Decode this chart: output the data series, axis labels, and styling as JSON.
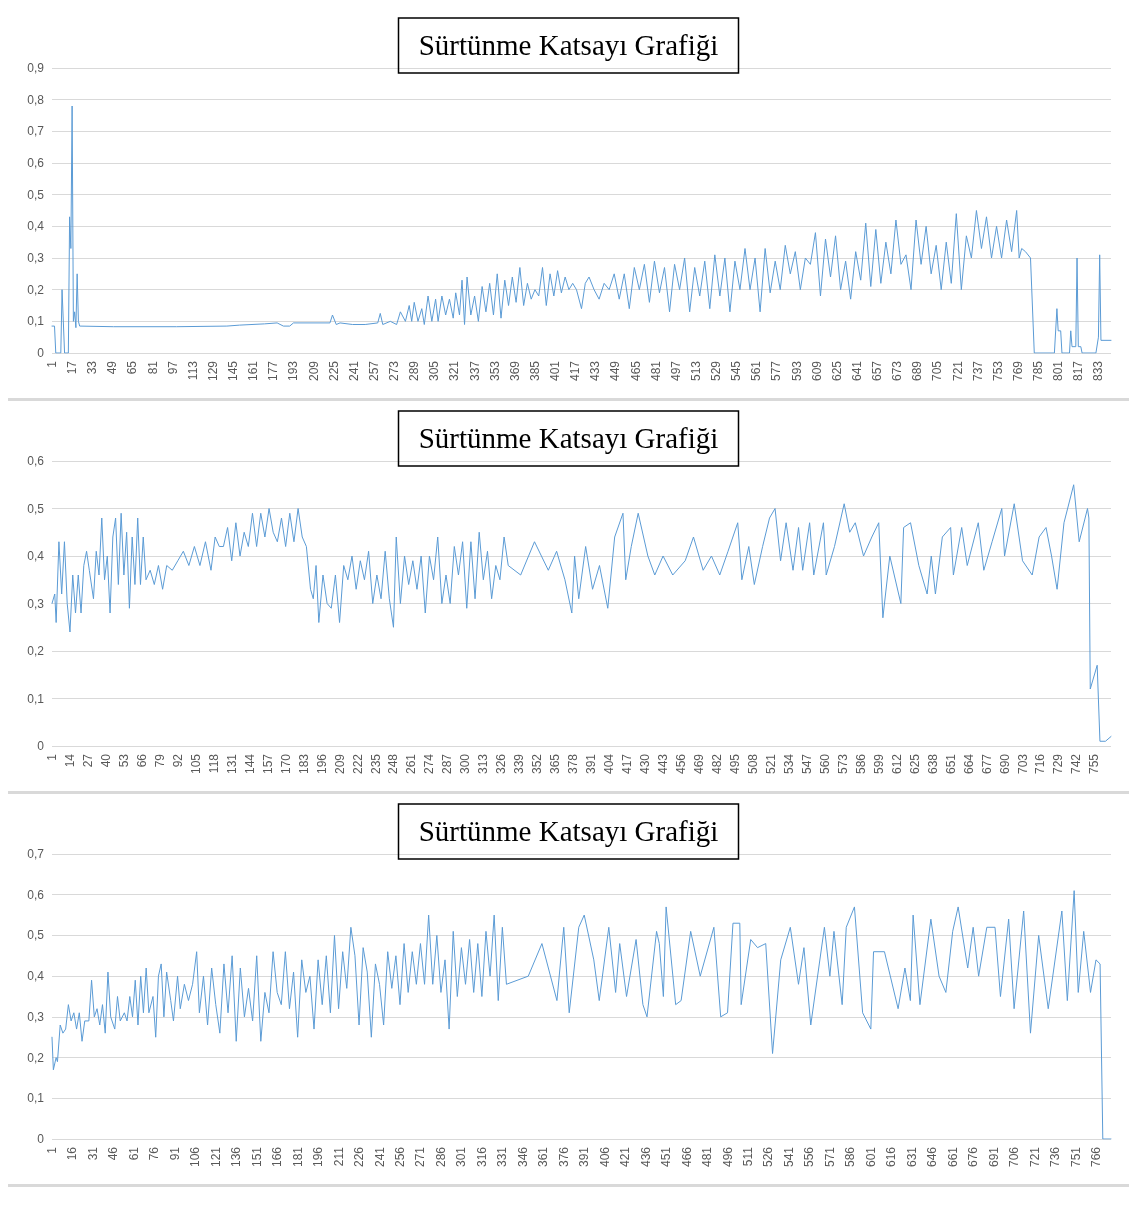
{
  "chart_data": [
    {
      "type": "line",
      "title": "Sürtünme Katsayı Grafiği",
      "grid": "y",
      "line_style": "solid",
      "marker": "none",
      "xlim": [
        1,
        843
      ],
      "ylim": [
        0,
        0.9
      ],
      "xticks": [
        1,
        17,
        33,
        49,
        65,
        81,
        97,
        113,
        129,
        145,
        161,
        177,
        193,
        209,
        225,
        241,
        257,
        273,
        289,
        305,
        321,
        337,
        353,
        369,
        385,
        401,
        417,
        433,
        449,
        465,
        481,
        497,
        513,
        529,
        545,
        561,
        577,
        593,
        609,
        625,
        641,
        657,
        673,
        689,
        705,
        721,
        737,
        753,
        769,
        785,
        801,
        817,
        833
      ],
      "yticks": [
        {
          "value": 0,
          "label": "0"
        },
        {
          "value": 0.1,
          "label": "0,1"
        },
        {
          "value": 0.2,
          "label": "0,2"
        },
        {
          "value": 0.3,
          "label": "0,3"
        },
        {
          "value": 0.4,
          "label": "0,4"
        },
        {
          "value": 0.5,
          "label": "0,5"
        },
        {
          "value": 0.6,
          "label": "0,6"
        },
        {
          "value": 0.7,
          "label": "0,7"
        },
        {
          "value": 0.8,
          "label": "0,8"
        },
        {
          "value": 0.9,
          "label": "0,9"
        }
      ],
      "series": [
        {
          "color": "#5b9bd5",
          "x": [
            1,
            3,
            4,
            8,
            9,
            11,
            14,
            15,
            16,
            17,
            18,
            19,
            20,
            21,
            22,
            23,
            50,
            100,
            140,
            150,
            170,
            180,
            185,
            190,
            193,
            222,
            224,
            227,
            230,
            240,
            250,
            260,
            262,
            264,
            270,
            275,
            278,
            282,
            285,
            287,
            289,
            292,
            295,
            297,
            300,
            303,
            306,
            308,
            311,
            314,
            317,
            320,
            322,
            325,
            327,
            329,
            331,
            334,
            337,
            340,
            343,
            346,
            349,
            352,
            355,
            358,
            361,
            364,
            367,
            370,
            373,
            376,
            379,
            382,
            385,
            388,
            391,
            394,
            397,
            400,
            403,
            406,
            409,
            412,
            415,
            418,
            422,
            425,
            428,
            432,
            436,
            440,
            444,
            448,
            452,
            456,
            460,
            464,
            468,
            472,
            476,
            480,
            484,
            488,
            492,
            496,
            500,
            504,
            508,
            512,
            516,
            520,
            524,
            528,
            532,
            536,
            540,
            544,
            548,
            552,
            556,
            560,
            564,
            568,
            572,
            576,
            580,
            584,
            588,
            592,
            596,
            600,
            604,
            608,
            612,
            616,
            620,
            624,
            628,
            632,
            636,
            640,
            644,
            648,
            652,
            656,
            660,
            664,
            668,
            672,
            676,
            680,
            684,
            688,
            692,
            696,
            700,
            704,
            708,
            712,
            716,
            720,
            724,
            728,
            732,
            736,
            740,
            744,
            748,
            752,
            756,
            760,
            764,
            768,
            770,
            772,
            775,
            779,
            782,
            798,
            800,
            801,
            803,
            804,
            810,
            811,
            812,
            815,
            816,
            817,
            819,
            820,
            831,
            833,
            834,
            835,
            843
          ],
          "values": [
            0.085,
            0.085,
            0,
            0,
            0.2,
            0,
            0,
            0.43,
            0.33,
            0.78,
            0.1,
            0.13,
            0.08,
            0.25,
            0.1,
            0.085,
            0.083,
            0.083,
            0.085,
            0.088,
            0.092,
            0.095,
            0.085,
            0.085,
            0.095,
            0.095,
            0.12,
            0.09,
            0.095,
            0.09,
            0.09,
            0.095,
            0.125,
            0.09,
            0.1,
            0.09,
            0.13,
            0.1,
            0.15,
            0.1,
            0.16,
            0.1,
            0.14,
            0.09,
            0.18,
            0.1,
            0.17,
            0.1,
            0.18,
            0.12,
            0.17,
            0.11,
            0.19,
            0.12,
            0.23,
            0.09,
            0.24,
            0.12,
            0.18,
            0.1,
            0.21,
            0.13,
            0.22,
            0.12,
            0.25,
            0.11,
            0.23,
            0.15,
            0.24,
            0.16,
            0.27,
            0.15,
            0.22,
            0.17,
            0.2,
            0.18,
            0.27,
            0.15,
            0.25,
            0.18,
            0.26,
            0.19,
            0.24,
            0.2,
            0.22,
            0.2,
            0.14,
            0.22,
            0.24,
            0.2,
            0.17,
            0.22,
            0.2,
            0.25,
            0.17,
            0.25,
            0.14,
            0.27,
            0.2,
            0.28,
            0.16,
            0.29,
            0.19,
            0.27,
            0.13,
            0.28,
            0.2,
            0.3,
            0.13,
            0.27,
            0.18,
            0.29,
            0.14,
            0.31,
            0.18,
            0.3,
            0.13,
            0.29,
            0.2,
            0.33,
            0.2,
            0.3,
            0.13,
            0.33,
            0.19,
            0.29,
            0.2,
            0.34,
            0.25,
            0.32,
            0.2,
            0.3,
            0.28,
            0.38,
            0.18,
            0.36,
            0.24,
            0.37,
            0.2,
            0.29,
            0.17,
            0.32,
            0.23,
            0.41,
            0.21,
            0.39,
            0.22,
            0.35,
            0.25,
            0.42,
            0.28,
            0.31,
            0.2,
            0.42,
            0.28,
            0.4,
            0.25,
            0.34,
            0.2,
            0.35,
            0.22,
            0.44,
            0.2,
            0.37,
            0.3,
            0.45,
            0.33,
            0.43,
            0.3,
            0.4,
            0.3,
            0.42,
            0.32,
            0.45,
            0.3,
            0.33,
            0.32,
            0.3,
            0,
            0,
            0.14,
            0.07,
            0.07,
            0,
            0,
            0.07,
            0.02,
            0.02,
            0.3,
            0.02,
            0.02,
            0,
            0,
            0.05,
            0.31,
            0.04,
            0.04
          ]
        }
      ]
    },
    {
      "type": "line",
      "title": "Sürtünme Katsayı Grafiği",
      "grid": "y",
      "line_style": "solid",
      "marker": "none",
      "xlim": [
        1,
        767
      ],
      "ylim": [
        0,
        0.6
      ],
      "xticks": [
        1,
        14,
        27,
        40,
        53,
        66,
        79,
        92,
        105,
        118,
        131,
        144,
        157,
        170,
        183,
        196,
        209,
        222,
        235,
        248,
        261,
        274,
        287,
        300,
        313,
        326,
        339,
        352,
        365,
        378,
        391,
        404,
        417,
        430,
        443,
        456,
        469,
        482,
        495,
        508,
        521,
        534,
        547,
        560,
        573,
        586,
        599,
        612,
        625,
        638,
        651,
        664,
        677,
        690,
        703,
        716,
        729,
        742,
        755
      ],
      "yticks": [
        {
          "value": 0,
          "label": "0"
        },
        {
          "value": 0.1,
          "label": "0,1"
        },
        {
          "value": 0.2,
          "label": "0,2"
        },
        {
          "value": 0.3,
          "label": "0,3"
        },
        {
          "value": 0.4,
          "label": "0,4"
        },
        {
          "value": 0.5,
          "label": "0,5"
        },
        {
          "value": 0.6,
          "label": "0,6"
        }
      ],
      "series": [
        {
          "color": "#5b9bd5",
          "x": [
            1,
            3,
            4,
            6,
            8,
            10,
            12,
            14,
            16,
            18,
            20,
            22,
            24,
            26,
            28,
            31,
            33,
            35,
            37,
            39,
            41,
            43,
            45,
            47,
            49,
            51,
            53,
            55,
            57,
            59,
            61,
            63,
            65,
            67,
            69,
            72,
            75,
            78,
            81,
            84,
            88,
            92,
            96,
            100,
            104,
            108,
            112,
            116,
            119,
            122,
            125,
            128,
            131,
            134,
            137,
            140,
            143,
            146,
            149,
            152,
            155,
            158,
            161,
            164,
            167,
            170,
            173,
            176,
            179,
            182,
            185,
            188,
            190,
            192,
            194,
            197,
            200,
            203,
            206,
            209,
            212,
            215,
            218,
            221,
            224,
            227,
            230,
            233,
            236,
            239,
            242,
            245,
            248,
            250,
            253,
            256,
            259,
            262,
            265,
            268,
            271,
            274,
            277,
            280,
            283,
            286,
            289,
            292,
            295,
            298,
            301,
            304,
            307,
            310,
            313,
            316,
            319,
            322,
            325,
            328,
            331,
            340,
            350,
            360,
            366,
            372,
            377,
            379,
            382,
            387,
            392,
            397,
            403,
            408,
            414,
            416,
            420,
            425,
            432,
            437,
            443,
            450,
            459,
            465,
            472,
            478,
            484,
            490,
            497,
            500,
            505,
            509,
            515,
            520,
            524,
            528,
            532,
            537,
            541,
            544,
            549,
            552,
            559,
            561,
            567,
            574,
            578,
            582,
            588,
            594,
            599,
            602,
            607,
            615,
            617,
            622,
            628,
            634,
            637,
            640,
            645,
            651,
            653,
            659,
            663,
            671,
            675,
            681,
            688,
            690,
            697,
            703,
            710,
            715,
            720,
            724,
            728,
            733,
            740,
            744,
            750,
            751,
            752,
            757,
            759,
            763,
            767
          ],
          "values": [
            0.3,
            0.32,
            0.26,
            0.43,
            0.32,
            0.43,
            0.3,
            0.24,
            0.36,
            0.28,
            0.36,
            0.28,
            0.38,
            0.41,
            0.37,
            0.31,
            0.41,
            0.36,
            0.48,
            0.35,
            0.4,
            0.28,
            0.44,
            0.48,
            0.34,
            0.49,
            0.36,
            0.45,
            0.29,
            0.44,
            0.34,
            0.48,
            0.34,
            0.44,
            0.35,
            0.37,
            0.34,
            0.38,
            0.33,
            0.38,
            0.37,
            0.39,
            0.41,
            0.38,
            0.42,
            0.38,
            0.43,
            0.37,
            0.44,
            0.42,
            0.42,
            0.46,
            0.39,
            0.47,
            0.4,
            0.45,
            0.42,
            0.49,
            0.42,
            0.49,
            0.44,
            0.5,
            0.45,
            0.43,
            0.48,
            0.42,
            0.49,
            0.43,
            0.5,
            0.44,
            0.42,
            0.33,
            0.31,
            0.38,
            0.26,
            0.36,
            0.3,
            0.29,
            0.36,
            0.26,
            0.38,
            0.35,
            0.4,
            0.33,
            0.39,
            0.35,
            0.41,
            0.3,
            0.36,
            0.31,
            0.41,
            0.31,
            0.25,
            0.44,
            0.3,
            0.4,
            0.34,
            0.39,
            0.33,
            0.4,
            0.28,
            0.4,
            0.35,
            0.44,
            0.3,
            0.36,
            0.3,
            0.42,
            0.36,
            0.43,
            0.29,
            0.43,
            0.31,
            0.45,
            0.35,
            0.41,
            0.31,
            0.38,
            0.35,
            0.44,
            0.38,
            0.36,
            0.43,
            0.37,
            0.41,
            0.35,
            0.28,
            0.4,
            0.31,
            0.42,
            0.33,
            0.38,
            0.29,
            0.44,
            0.49,
            0.35,
            0.42,
            0.49,
            0.4,
            0.36,
            0.4,
            0.36,
            0.39,
            0.44,
            0.37,
            0.4,
            0.36,
            0.41,
            0.47,
            0.35,
            0.42,
            0.34,
            0.42,
            0.48,
            0.5,
            0.39,
            0.47,
            0.37,
            0.46,
            0.37,
            0.47,
            0.36,
            0.47,
            0.36,
            0.42,
            0.51,
            0.45,
            0.47,
            0.4,
            0.44,
            0.47,
            0.27,
            0.4,
            0.3,
            0.46,
            0.47,
            0.38,
            0.32,
            0.4,
            0.32,
            0.44,
            0.46,
            0.36,
            0.46,
            0.38,
            0.47,
            0.37,
            0.43,
            0.5,
            0.4,
            0.51,
            0.39,
            0.36,
            0.44,
            0.46,
            0.4,
            0.33,
            0.47,
            0.55,
            0.43,
            0.5,
            0.48,
            0.12,
            0.17,
            0.01,
            0.01,
            0.02
          ]
        }
      ]
    },
    {
      "type": "line",
      "title": "Sürtünme Katsayı Grafiği",
      "grid": "y",
      "line_style": "solid",
      "marker": "none",
      "xlim": [
        1,
        777
      ],
      "ylim": [
        0,
        0.7
      ],
      "xticks": [
        1,
        16,
        31,
        46,
        61,
        76,
        91,
        106,
        121,
        136,
        151,
        166,
        181,
        196,
        211,
        226,
        241,
        256,
        271,
        286,
        301,
        316,
        331,
        346,
        361,
        376,
        391,
        406,
        421,
        436,
        451,
        466,
        481,
        496,
        511,
        526,
        541,
        556,
        571,
        586,
        601,
        616,
        631,
        646,
        661,
        676,
        691,
        706,
        721,
        736,
        751,
        766
      ],
      "yticks": [
        {
          "value": 0,
          "label": "0"
        },
        {
          "value": 0.1,
          "label": "0,1"
        },
        {
          "value": 0.2,
          "label": "0,2"
        },
        {
          "value": 0.3,
          "label": "0,3"
        },
        {
          "value": 0.4,
          "label": "0,4"
        },
        {
          "value": 0.5,
          "label": "0,5"
        },
        {
          "value": 0.6,
          "label": "0,6"
        },
        {
          "value": 0.7,
          "label": "0,7"
        }
      ],
      "series": [
        {
          "color": "#5b9bd5",
          "x": [
            1,
            2,
            4,
            5,
            7,
            9,
            11,
            13,
            15,
            17,
            19,
            21,
            23,
            25,
            28,
            30,
            32,
            34,
            36,
            38,
            40,
            42,
            44,
            47,
            49,
            51,
            54,
            56,
            58,
            60,
            62,
            64,
            66,
            68,
            70,
            72,
            75,
            77,
            79,
            81,
            83,
            85,
            88,
            90,
            93,
            95,
            98,
            101,
            104,
            107,
            109,
            112,
            115,
            118,
            121,
            124,
            127,
            130,
            133,
            136,
            139,
            142,
            145,
            148,
            151,
            154,
            157,
            160,
            163,
            166,
            169,
            172,
            175,
            178,
            181,
            184,
            187,
            190,
            193,
            196,
            199,
            202,
            205,
            208,
            211,
            214,
            217,
            220,
            223,
            226,
            229,
            232,
            235,
            238,
            241,
            244,
            247,
            250,
            253,
            256,
            259,
            262,
            265,
            268,
            271,
            274,
            277,
            280,
            283,
            286,
            289,
            292,
            295,
            298,
            301,
            304,
            307,
            310,
            313,
            316,
            319,
            322,
            325,
            328,
            331,
            334,
            350,
            360,
            371,
            376,
            380,
            387,
            391,
            398,
            402,
            409,
            414,
            417,
            422,
            429,
            434,
            437,
            444,
            446,
            449,
            451,
            458,
            462,
            469,
            476,
            486,
            491,
            496,
            500,
            505,
            506,
            513,
            518,
            524,
            529,
            535,
            542,
            548,
            552,
            557,
            567,
            571,
            574,
            580,
            583,
            589,
            595,
            601,
            603,
            611,
            621,
            626,
            630,
            632,
            637,
            645,
            651,
            656,
            661,
            665,
            672,
            676,
            680,
            686,
            692,
            696,
            702,
            706,
            713,
            718,
            724,
            731,
            741,
            745,
            750,
            753,
            757,
            762,
            766,
            769,
            771,
            777
          ],
          "values": [
            0.25,
            0.17,
            0.2,
            0.19,
            0.28,
            0.26,
            0.27,
            0.33,
            0.29,
            0.31,
            0.27,
            0.31,
            0.24,
            0.29,
            0.29,
            0.39,
            0.3,
            0.32,
            0.28,
            0.33,
            0.26,
            0.41,
            0.3,
            0.27,
            0.35,
            0.29,
            0.31,
            0.29,
            0.35,
            0.3,
            0.39,
            0.28,
            0.4,
            0.31,
            0.42,
            0.31,
            0.35,
            0.25,
            0.4,
            0.43,
            0.3,
            0.41,
            0.34,
            0.29,
            0.4,
            0.32,
            0.38,
            0.34,
            0.38,
            0.46,
            0.31,
            0.4,
            0.28,
            0.42,
            0.33,
            0.26,
            0.43,
            0.31,
            0.45,
            0.24,
            0.42,
            0.3,
            0.37,
            0.29,
            0.45,
            0.24,
            0.36,
            0.31,
            0.46,
            0.36,
            0.33,
            0.46,
            0.32,
            0.41,
            0.25,
            0.44,
            0.36,
            0.4,
            0.27,
            0.44,
            0.33,
            0.45,
            0.31,
            0.5,
            0.32,
            0.46,
            0.37,
            0.52,
            0.45,
            0.28,
            0.47,
            0.41,
            0.25,
            0.43,
            0.38,
            0.28,
            0.46,
            0.37,
            0.45,
            0.33,
            0.48,
            0.36,
            0.46,
            0.38,
            0.48,
            0.38,
            0.55,
            0.38,
            0.5,
            0.36,
            0.44,
            0.27,
            0.51,
            0.35,
            0.47,
            0.38,
            0.49,
            0.36,
            0.48,
            0.35,
            0.51,
            0.4,
            0.55,
            0.34,
            0.52,
            0.38,
            0.4,
            0.48,
            0.34,
            0.52,
            0.31,
            0.52,
            0.55,
            0.44,
            0.34,
            0.52,
            0.36,
            0.48,
            0.35,
            0.49,
            0.33,
            0.3,
            0.51,
            0.48,
            0.35,
            0.57,
            0.33,
            0.34,
            0.51,
            0.4,
            0.52,
            0.3,
            0.31,
            0.53,
            0.53,
            0.33,
            0.49,
            0.47,
            0.48,
            0.21,
            0.44,
            0.52,
            0.38,
            0.47,
            0.28,
            0.52,
            0.4,
            0.51,
            0.33,
            0.52,
            0.57,
            0.31,
            0.27,
            0.46,
            0.46,
            0.32,
            0.42,
            0.34,
            0.55,
            0.33,
            0.54,
            0.4,
            0.36,
            0.51,
            0.57,
            0.42,
            0.52,
            0.4,
            0.52,
            0.52,
            0.35,
            0.54,
            0.32,
            0.56,
            0.26,
            0.5,
            0.32,
            0.56,
            0.34,
            0.61,
            0.36,
            0.51,
            0.36,
            0.44,
            0.43,
            0,
            0
          ]
        }
      ]
    }
  ]
}
